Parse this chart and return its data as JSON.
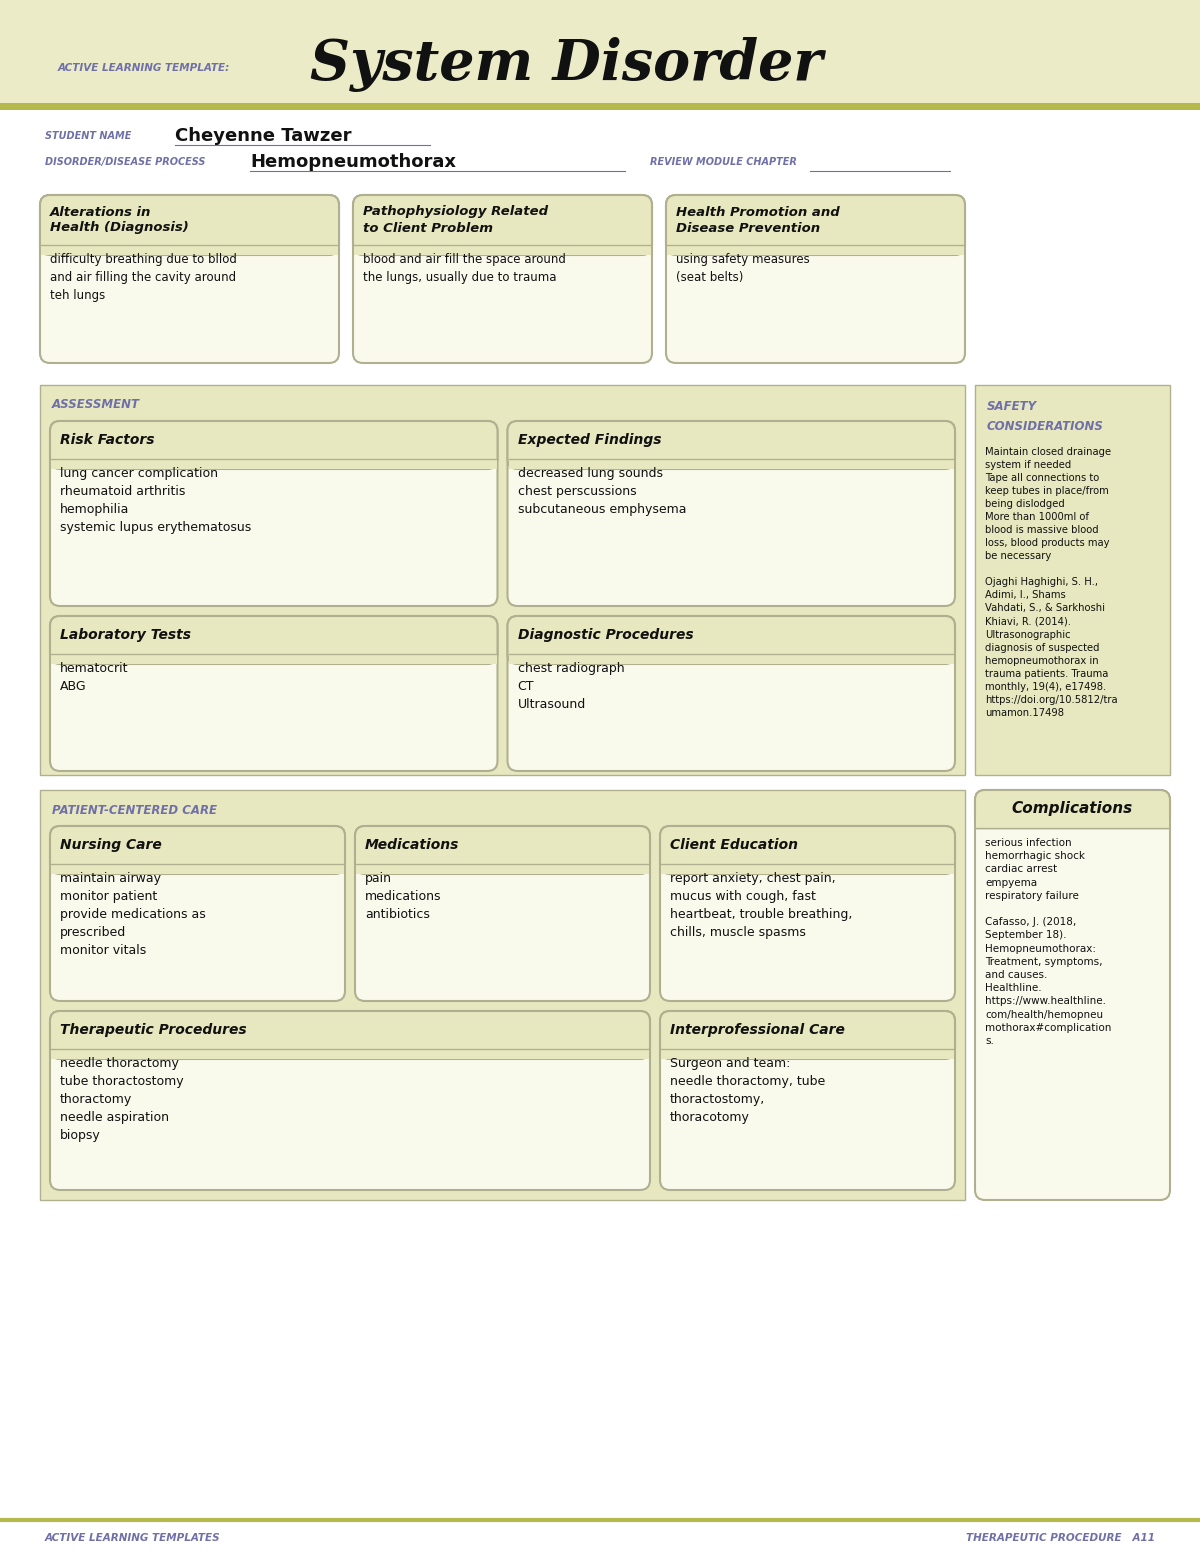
{
  "page_bg": "#ffffff",
  "header_bg": "#ebebc8",
  "olive_line": "#b5b84a",
  "section_bg": "#e8e8c0",
  "box_bg": "#f5f5e0",
  "box_border": "#b0b090",
  "purple_text": "#7070a8",
  "dark_text": "#111111",
  "title_label": "ACTIVE LEARNING TEMPLATE:",
  "title_main": "System Disorder",
  "student_label": "STUDENT NAME",
  "student_name": "Cheyenne Tawzer",
  "disorder_label": "DISORDER/DISEASE PROCESS",
  "disorder_name": "Hemopneumothorax",
  "review_label": "REVIEW MODULE CHAPTER",
  "top_boxes": [
    {
      "title": "Alterations in\nHealth (Diagnosis)",
      "content": "difficulty breathing due to bllod\nand air filling the cavity around\nteh lungs"
    },
    {
      "title": "Pathophysiology Related\nto Client Problem",
      "content": "blood and air fill the space around\nthe lungs, usually due to trauma"
    },
    {
      "title": "Health Promotion and\nDisease Prevention",
      "content": "using safety measures\n(seat belts)"
    }
  ],
  "assessment_label": "ASSESSMENT",
  "safety_label": "SAFETY\nCONSIDERATIONS",
  "safety_text": "Maintain closed drainage\nsystem if needed\nTape all connections to\nkeep tubes in place/from\nbeing dislodged\nMore than 1000ml of\nblood is massive blood\nloss, blood products may\nbe necessary\n\nOjaghi Haghighi, S. H.,\nAdimi, I., Shams\nVahdati, S., & Sarkhoshi\nKhiavi, R. (2014).\nUltrasonographic\ndiagnosis of suspected\nhemopneumothorax in\ntrauma patients. Trauma\nmonthly, 19(4), e17498.\nhttps://doi.org/10.5812/tra\numamon.17498",
  "risk_title": "Risk Factors",
  "risk_content": "lung cancer complication\nrheumatoid arthritis\nhemophilia\nsystemic lupus erythematosus",
  "expected_title": "Expected Findings",
  "expected_content": "decreased lung sounds\nchest perscussions\nsubcutaneous emphysema",
  "lab_title": "Laboratory Tests",
  "lab_content": "hematocrit\nABG",
  "diag_title": "Diagnostic Procedures",
  "diag_content": "chest radiograph\nCT\nUltrasound",
  "patient_care_label": "PATIENT-CENTERED CARE",
  "complications_title": "Complications",
  "complications_text": "serious infection\nhemorrhagic shock\ncardiac arrest\nempyema\nrespiratory failure\n\nCafasso, J. (2018,\nSeptember 18).\nHemopneumothorax:\nTreatment, symptoms,\nand causes.\nHealthline.\nhttps://www.healthline.\ncom/health/hemopneu\nmothorax#complication\ns.",
  "nursing_title": "Nursing Care",
  "nursing_content": "maintain airway\nmonitor patient\nprovide medications as\nprescribed\nmonitor vitals",
  "med_title": "Medications",
  "med_content": "pain\nmedications\nantibiotics",
  "client_title": "Client Education",
  "client_content": "report anxiety, chest pain,\nmucus with cough, fast\nheartbeat, trouble breathing,\nchills, muscle spasms",
  "therapeutic_title": "Therapeutic Procedures",
  "therapeutic_content": "needle thoractomy\ntube thoractostomy\nthoractomy\nneedle aspiration\nbiopsy",
  "interpro_title": "Interprofessional Care",
  "interpro_content": "Surgeon and team:\nneedle thoractomy, tube\nthoractostomy,\nthoracotomy",
  "footer_left": "ACTIVE LEARNING TEMPLATES",
  "footer_right": "THERAPEUTIC PROCEDURE   A11"
}
